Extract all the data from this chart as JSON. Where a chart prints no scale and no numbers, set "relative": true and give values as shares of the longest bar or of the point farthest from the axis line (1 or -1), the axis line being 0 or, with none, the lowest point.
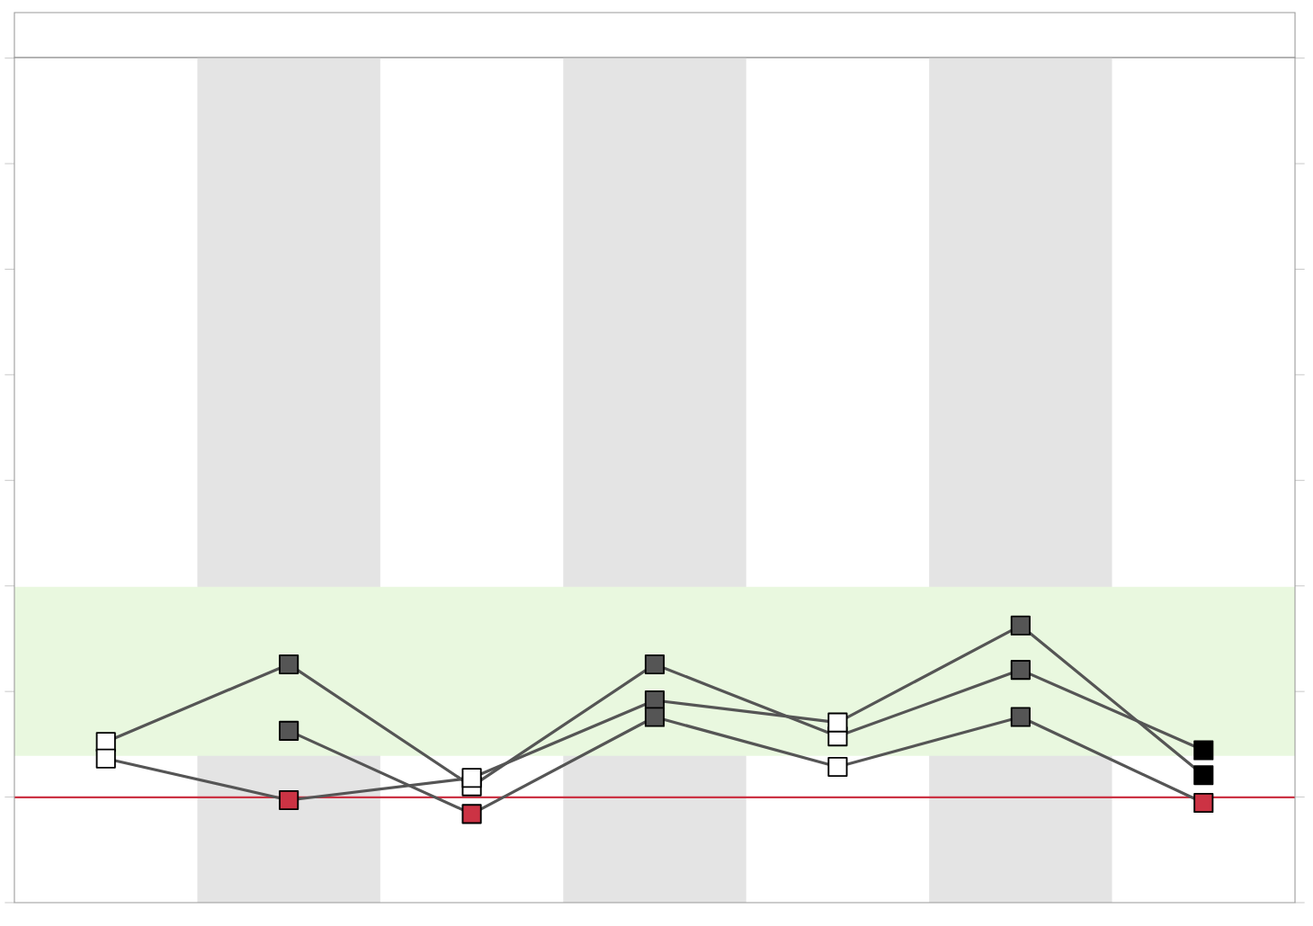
{
  "chart_data": {
    "type": "line",
    "relative": true,
    "grid": false,
    "line_style": "solid",
    "marker": "square",
    "categories": [
      null,
      null,
      null,
      null,
      null,
      null,
      null
    ],
    "series": [
      {
        "color": "#555555",
        "values": [
          0.58,
          0.86,
          0.42,
          0.86,
          0.6,
          0.84,
          0.55
        ],
        "colors": [
          "#ffffff",
          "#555555",
          "#ffffff",
          "#555555",
          "#ffffff",
          "#555555",
          "#000000"
        ]
      },
      {
        "color": "#555555",
        "values": [
          0.52,
          0.37,
          0.45,
          0.73,
          0.65,
          1.0,
          0.46
        ],
        "colors": [
          "#ffffff",
          "#cc3344",
          "#ffffff",
          "#555555",
          "#ffffff",
          "#555555",
          "#000000"
        ]
      },
      {
        "color": "#555555",
        "values": [
          null,
          0.62,
          0.32,
          0.67,
          0.49,
          0.67,
          0.36
        ],
        "colors": [
          null,
          "#555555",
          "#cc3344",
          "#555555",
          "#ffffff",
          "#555555",
          "#cc3344"
        ]
      }
    ],
    "ref_lines": [
      {
        "axis": "y",
        "value": 0.38,
        "color": "#cc3344"
      }
    ],
    "bands": [
      {
        "axis": "y",
        "from": 0.53,
        "to": 1.14,
        "color": "#e9f8df"
      }
    ]
  }
}
